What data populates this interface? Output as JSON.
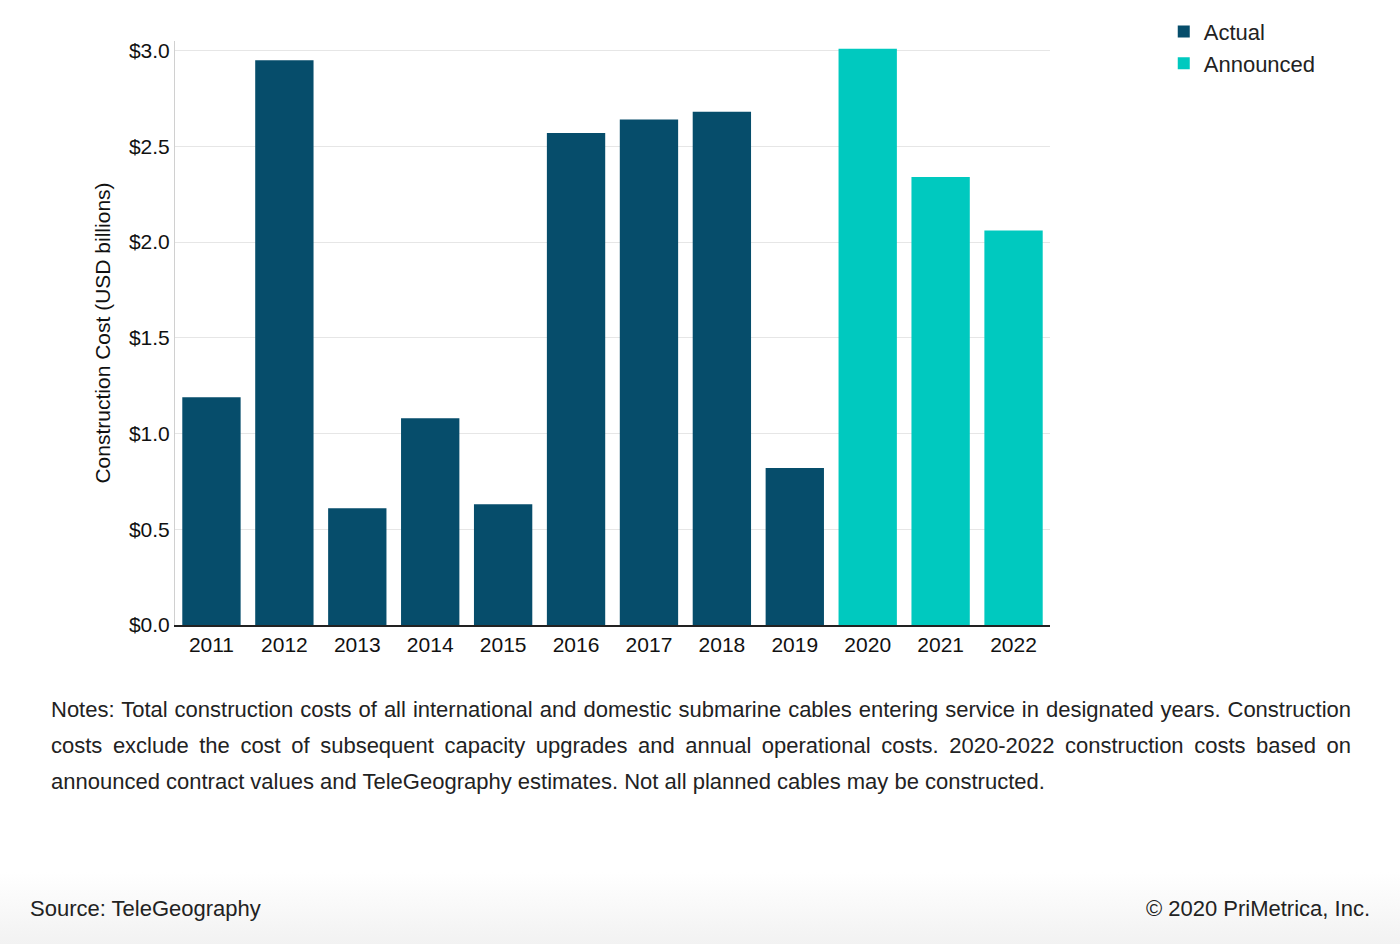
{
  "chart_data": {
    "type": "bar",
    "y_label": "Construction Cost (USD billions)",
    "categories": [
      "2011",
      "2012",
      "2013",
      "2014",
      "2015",
      "2016",
      "2017",
      "2018",
      "2019",
      "2020",
      "2021",
      "2022"
    ],
    "series": [
      {
        "name": "Actual",
        "color": "#064d6b",
        "values": [
          1.19,
          2.95,
          0.61,
          1.08,
          0.63,
          2.57,
          2.64,
          2.68,
          0.82,
          null,
          null,
          null
        ]
      },
      {
        "name": "Announced",
        "color": "#00c9bf",
        "values": [
          null,
          null,
          null,
          null,
          null,
          null,
          null,
          null,
          null,
          3.01,
          2.34,
          2.06
        ]
      }
    ],
    "ylim": [
      0,
      3.05
    ],
    "yticks": [
      {
        "value": 0,
        "label": "$0.0"
      },
      {
        "value": 0.5,
        "label": "$0.5"
      },
      {
        "value": 1,
        "label": "$1.0"
      },
      {
        "value": 1.5,
        "label": "$1.5"
      },
      {
        "value": 2,
        "label": "$2.0"
      },
      {
        "value": 2.5,
        "label": "$2.5"
      },
      {
        "value": 3,
        "label": "$3.0"
      }
    ],
    "grid": true,
    "legend": "top right",
    "notes": "Notes: Total construction costs of all international and domestic submarine cables entering service in designated years. Construction costs exclude the cost of subsequent capacity upgrades and annual operational costs. 2020-2022 construction costs based on announced contract values and TeleGeography estimates. Not all planned cables may be constructed.",
    "source": "Source: TeleGeography",
    "credit": "© 2020 PriMetrica, Inc."
  }
}
